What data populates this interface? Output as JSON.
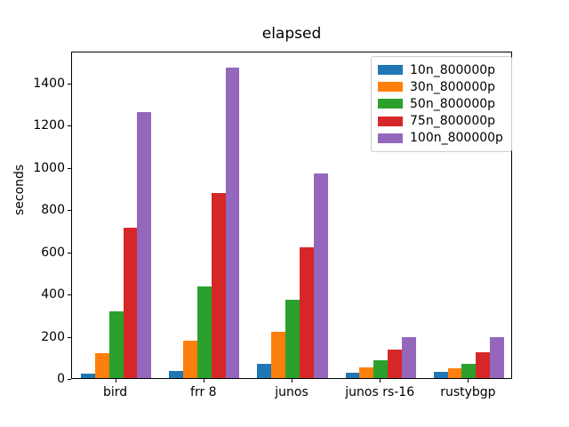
{
  "chart_data": {
    "type": "bar",
    "title": "elapsed",
    "xlabel": "",
    "ylabel": "seconds",
    "categories": [
      "bird",
      "frr 8",
      "junos",
      "junos rs-16",
      "rustybgp"
    ],
    "series": [
      {
        "name": "10n_800000p",
        "color": "#1f77b4",
        "values": [
          20,
          33,
          68,
          27,
          30
        ]
      },
      {
        "name": "30n_800000p",
        "color": "#ff7f0e",
        "values": [
          118,
          175,
          220,
          51,
          47
        ]
      },
      {
        "name": "50n_800000p",
        "color": "#2ca02c",
        "values": [
          315,
          432,
          370,
          85,
          68
        ]
      },
      {
        "name": "75n_800000p",
        "color": "#d62728",
        "values": [
          710,
          878,
          618,
          135,
          122
        ]
      },
      {
        "name": "100n_800000p",
        "color": "#9467bd",
        "values": [
          1260,
          1472,
          970,
          195,
          195
        ]
      }
    ],
    "ylim": [
      0,
      1550
    ],
    "yticks": [
      0,
      200,
      400,
      600,
      800,
      1000,
      1200,
      1400
    ],
    "grid": false,
    "legend_position": "upper right",
    "background_color": "#ffffff",
    "text_color": "#000000"
  }
}
